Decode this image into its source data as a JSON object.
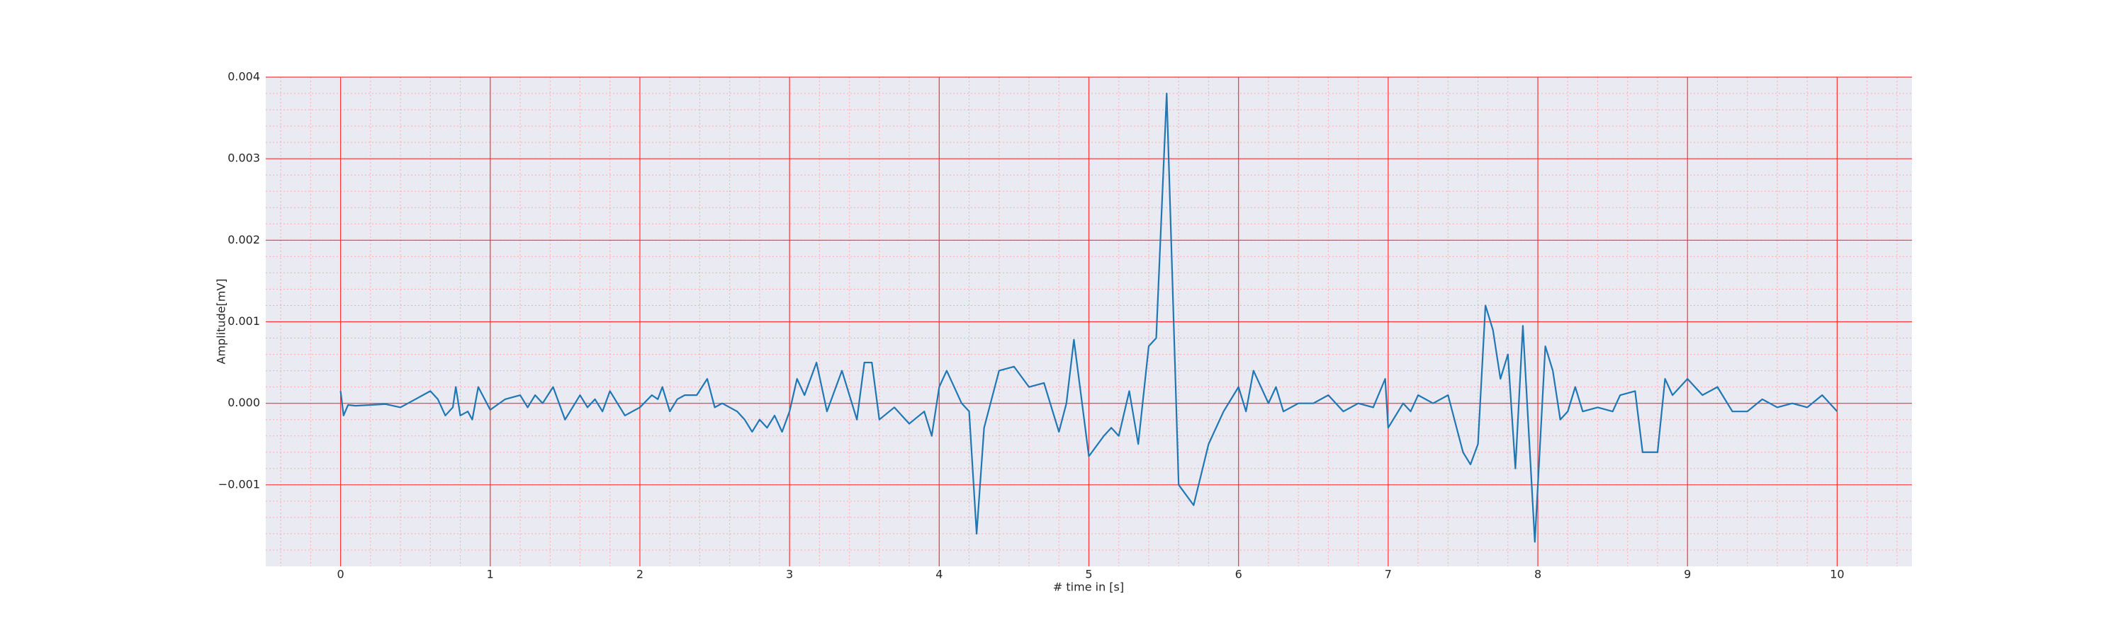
{
  "chart_data": {
    "type": "line",
    "xlabel": "# time in [s]",
    "ylabel": "Amplitude[mV]",
    "x": [
      0,
      0.02,
      0.05,
      0.1,
      0.2,
      0.3,
      0.4,
      0.5,
      0.55,
      0.6,
      0.65,
      0.7,
      0.75,
      0.77,
      0.8,
      0.85,
      0.88,
      0.92,
      1.0,
      1.1,
      1.2,
      1.25,
      1.3,
      1.35,
      1.42,
      1.5,
      1.6,
      1.65,
      1.7,
      1.75,
      1.8,
      1.9,
      2.0,
      2.08,
      2.12,
      2.15,
      2.2,
      2.25,
      2.3,
      2.38,
      2.45,
      2.5,
      2.55,
      2.6,
      2.65,
      2.7,
      2.75,
      2.8,
      2.85,
      2.9,
      2.95,
      3.0,
      3.05,
      3.1,
      3.18,
      3.25,
      3.3,
      3.35,
      3.45,
      3.5,
      3.55,
      3.6,
      3.7,
      3.8,
      3.9,
      3.95,
      4.0,
      4.05,
      4.15,
      4.2,
      4.25,
      4.3,
      4.4,
      4.5,
      4.6,
      4.7,
      4.8,
      4.85,
      4.9,
      5.0,
      5.1,
      5.15,
      5.2,
      5.27,
      5.33,
      5.4,
      5.45,
      5.52,
      5.6,
      5.7,
      5.8,
      5.9,
      6.0,
      6.05,
      6.1,
      6.2,
      6.25,
      6.3,
      6.4,
      6.5,
      6.6,
      6.7,
      6.8,
      6.9,
      6.98,
      7.0,
      7.1,
      7.15,
      7.2,
      7.3,
      7.4,
      7.5,
      7.55,
      7.6,
      7.65,
      7.7,
      7.75,
      7.8,
      7.85,
      7.9,
      7.98,
      8.05,
      8.1,
      8.15,
      8.2,
      8.25,
      8.3,
      8.4,
      8.5,
      8.55,
      8.65,
      8.7,
      8.8,
      8.85,
      8.9,
      9.0,
      9.1,
      9.2,
      9.3,
      9.4,
      9.5,
      9.6,
      9.7,
      9.8,
      9.9,
      10.0
    ],
    "series": [
      {
        "color": "#1f77b4",
        "values": [
          0.00015,
          -0.00015,
          -2e-05,
          -3e-05,
          -2e-05,
          -1e-05,
          -5e-05,
          5e-05,
          0.0001,
          0.00015,
          5e-05,
          -0.00015,
          -5e-05,
          0.0002,
          -0.00015,
          -0.0001,
          -0.0002,
          0.0002,
          -8e-05,
          5e-05,
          0.0001,
          -5e-05,
          0.0001,
          0,
          0.0002,
          -0.0002,
          0.0001,
          -5e-05,
          5e-05,
          -0.0001,
          0.00015,
          -0.00015,
          -5e-05,
          0.0001,
          5e-05,
          0.0002,
          -0.0001,
          5e-05,
          0.0001,
          0.0001,
          0.0003,
          -5e-05,
          0,
          -5e-05,
          -0.0001,
          -0.0002,
          -0.00035,
          -0.0002,
          -0.0003,
          -0.00015,
          -0.00035,
          -0.0001,
          0.0003,
          0.0001,
          0.0005,
          -0.0001,
          0.00015,
          0.0004,
          -0.0002,
          0.0005,
          0.0005,
          -0.0002,
          -5e-05,
          -0.00025,
          -0.0001,
          -0.0004,
          0.0002,
          0.0004,
          0,
          -0.0001,
          -0.0016,
          -0.0003,
          0.0004,
          0.00045,
          0.0002,
          0.00025,
          -0.00035,
          0,
          0.00078,
          -0.00065,
          -0.0004,
          -0.0003,
          -0.0004,
          0.00015,
          -0.0005,
          0.0007,
          0.0008,
          0.0038,
          -0.001,
          -0.00125,
          -0.0005,
          -0.0001,
          0.0002,
          -0.0001,
          0.0004,
          0,
          0.0002,
          -0.0001,
          0,
          0,
          0.0001,
          -0.0001,
          0,
          -5e-05,
          0.0003,
          -0.0003,
          0,
          -0.0001,
          0.0001,
          0,
          0.0001,
          -0.0006,
          -0.00075,
          -0.0005,
          0.0012,
          0.0009,
          0.0003,
          0.0006,
          -0.0008,
          0.00095,
          -0.0017,
          0.0007,
          0.0004,
          -0.0002,
          -0.0001,
          0.0002,
          -0.0001,
          -5e-05,
          -0.0001,
          0.0001,
          0.00015,
          -0.0006,
          -0.0006,
          0.0003,
          0.0001,
          0.0003,
          0.0001,
          0.0002,
          -0.0001,
          -0.0001,
          5e-05,
          -5e-05,
          0,
          -5e-05,
          0.0001,
          -0.0001
        ]
      }
    ],
    "xlim": [
      -0.5,
      10.5
    ],
    "ylim": [
      -0.002,
      0.004
    ],
    "xticks": [
      0,
      1,
      2,
      3,
      4,
      5,
      6,
      7,
      8,
      9,
      10
    ],
    "yticks": [
      {
        "value": -0.001,
        "label": "−0.001"
      },
      {
        "value": 0,
        "label": "0.000"
      },
      0.001,
      0.002,
      0.003,
      0.004
    ],
    "grid": true,
    "minor_grid": true,
    "grid_color": "#ff3333",
    "minor_grid_color": "#ffaaaa",
    "background": "#eaeaf2"
  }
}
